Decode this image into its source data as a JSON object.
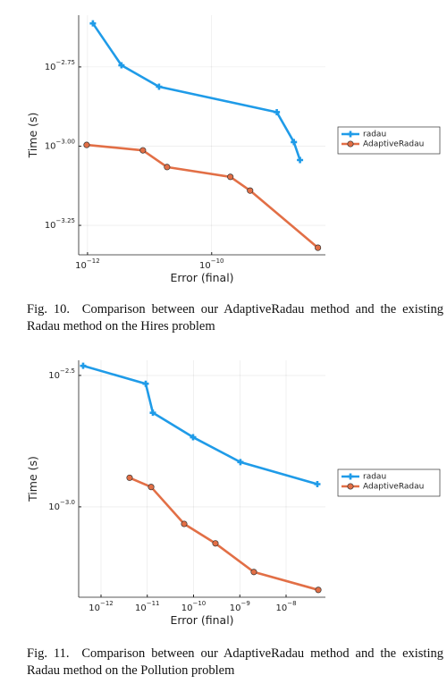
{
  "chart_data": [
    {
      "type": "line",
      "xlabel": "Error (final)",
      "ylabel": "Time (s)",
      "xscale": "log",
      "yscale": "log",
      "grid": true,
      "legend": "right",
      "xlim": [
        7.2e-13,
        6.8e-09
      ],
      "ylim": [
        0.000454,
        0.00259
      ],
      "xticks": [
        {
          "value": 1e-12,
          "label": "10",
          "exponent": "−12"
        },
        {
          "value": 1e-10,
          "label": "10",
          "exponent": "−10"
        }
      ],
      "yticks": [
        {
          "value": 0.00177828,
          "label": "10",
          "exponent": "−2.75"
        },
        {
          "value": 0.001,
          "label": "10",
          "exponent": "−3.00"
        },
        {
          "value": 0.000562341,
          "label": "10",
          "exponent": "−3.25"
        }
      ],
      "series": [
        {
          "name": "radau",
          "color": "#1f9be8",
          "marker": "cross",
          "x": [
            1.22e-12,
            3.52e-12,
            1.42e-11,
            1.12e-09,
            2.11e-09,
            2.65e-09
          ],
          "values": [
            0.00244,
            0.0018,
            0.00154,
            0.00128,
            0.00103,
            0.000904
          ]
        },
        {
          "name": "AdaptiveRadau",
          "color": "#e26f46",
          "marker": "circle",
          "x": [
            9.68e-13,
            7.8e-12,
            1.91e-11,
            2e-10,
            4.16e-10,
            5.15e-09
          ],
          "values": [
            0.001009,
            0.00097,
            0.000859,
            0.0008,
            0.000724,
            0.000478
          ]
        }
      ]
    },
    {
      "type": "line",
      "xlabel": "Error (final)",
      "ylabel": "Time (s)",
      "xscale": "log",
      "yscale": "log",
      "grid": true,
      "legend": "right",
      "xlim": [
        3.29e-13,
        7.08e-08
      ],
      "ylim": [
        0.000453,
        0.00361
      ],
      "xticks": [
        {
          "value": 1e-12,
          "label": "10",
          "exponent": "−12"
        },
        {
          "value": 1e-11,
          "label": "10",
          "exponent": "−11"
        },
        {
          "value": 1e-10,
          "label": "10",
          "exponent": "−10"
        },
        {
          "value": 1e-09,
          "label": "10",
          "exponent": "−9"
        },
        {
          "value": 1e-08,
          "label": "10",
          "exponent": "−8"
        }
      ],
      "yticks": [
        {
          "value": 0.00316228,
          "label": "10",
          "exponent": "−2.5"
        },
        {
          "value": 0.001,
          "label": "10",
          "exponent": "−3.0"
        }
      ],
      "series": [
        {
          "name": "radau",
          "color": "#1f9be8",
          "marker": "cross",
          "x": [
            4.11e-13,
            9.25e-12,
            1.32e-11,
            9.77e-11,
            1.03e-09,
            4.74e-08
          ],
          "values": [
            0.00344,
            0.00294,
            0.00228,
            0.00184,
            0.00148,
            0.00122
          ]
        },
        {
          "name": "AdaptiveRadau",
          "color": "#e26f46",
          "marker": "circle",
          "x": [
            4.15e-12,
            1.21e-11,
            6.27e-11,
            2.97e-10,
            2.01e-09,
            4.97e-08
          ],
          "values": [
            0.00129,
            0.00119,
            0.000861,
            0.000726,
            0.000565,
            0.000483
          ]
        }
      ]
    }
  ],
  "captions": [
    {
      "label": "Fig. 10.",
      "text": "Comparison between our AdaptiveRadau method and the existing Radau method on the Hires problem"
    },
    {
      "label": "Fig. 11.",
      "text": "Comparison between our AdaptiveRadau method and the existing Radau method on the Pollution problem"
    }
  ]
}
